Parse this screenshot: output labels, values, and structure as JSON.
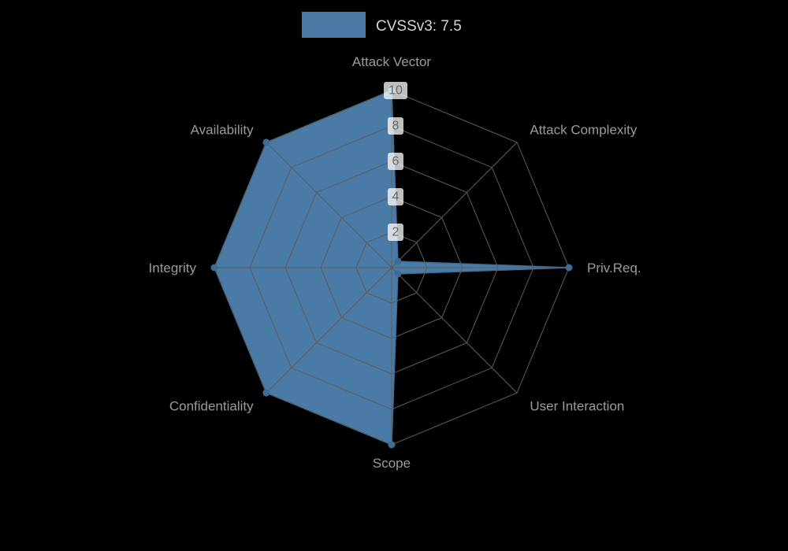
{
  "legend": {
    "label": "CVSSv3: 7.5",
    "swatch_color": "#4a7ba6"
  },
  "colors": {
    "background": "#000000",
    "series_fill": "#4a7ba6",
    "series_outline": "#3e6c97",
    "point": "#3e6c97",
    "grid_line": "#5c5c5c",
    "category_label": "#9b9b9b",
    "tick_text": "#666666",
    "tick_box": "rgba(255,255,255,0.75)",
    "legend_text": "#d4d4d4"
  },
  "chart_data": {
    "type": "radar",
    "title": "CVSSv3: 7.5",
    "categories": [
      "Attack Vector",
      "Attack Complexity",
      "Priv.Req.",
      "User Interaction",
      "Scope",
      "Confidentiality",
      "Integrity",
      "Availability"
    ],
    "series": [
      {
        "name": "CVSSv3: 7.5",
        "values": [
          10,
          0.5,
          10,
          0.5,
          10,
          10,
          10,
          10
        ]
      }
    ],
    "radial_ticks": [
      2,
      4,
      6,
      8,
      10
    ],
    "rlim": [
      0,
      10
    ],
    "grid": true,
    "legend_position": "top"
  }
}
